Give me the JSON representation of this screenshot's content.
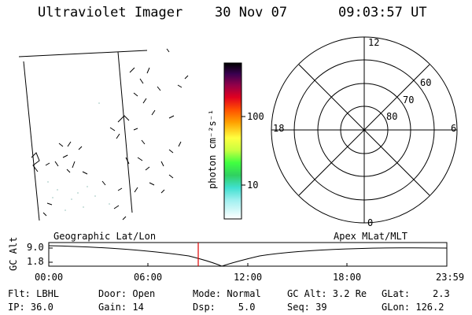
{
  "header": {
    "instrument": "Ultraviolet Imager",
    "date": "30 Nov 07",
    "time": "09:03:57 UT"
  },
  "colorbar": {
    "unit_label": "photon cm⁻²s⁻¹",
    "ticks": [
      "100",
      "10"
    ]
  },
  "polar_plot": {
    "mlt_labels": {
      "top": "12",
      "bottom": "0",
      "left": "18",
      "right": "6"
    },
    "lat_labels": [
      "60",
      "70",
      "80"
    ]
  },
  "altitude_panel": {
    "left_title": "Geographic Lat/Lon",
    "right_title": "Apex MLat/MLT",
    "ylabel": "GC Alt",
    "yticks": [
      "9.0",
      "1.8"
    ],
    "xticks": [
      "00:00",
      "06:00",
      "12:00",
      "18:00",
      "23:59"
    ],
    "marker_color": "#e00000"
  },
  "info": {
    "flt": "Flt: LBHL",
    "ip": "IP: 36.0",
    "door": "Door: Open",
    "gain": "Gain: 14",
    "mode": "Mode: Normal",
    "dsp": "Dsp:    5.0",
    "gcalt": "GC Alt: 3.2 Re",
    "seq": "Seq: 39",
    "glat": "GLat:    2.3",
    "glon": "GLon: 126.2"
  }
}
